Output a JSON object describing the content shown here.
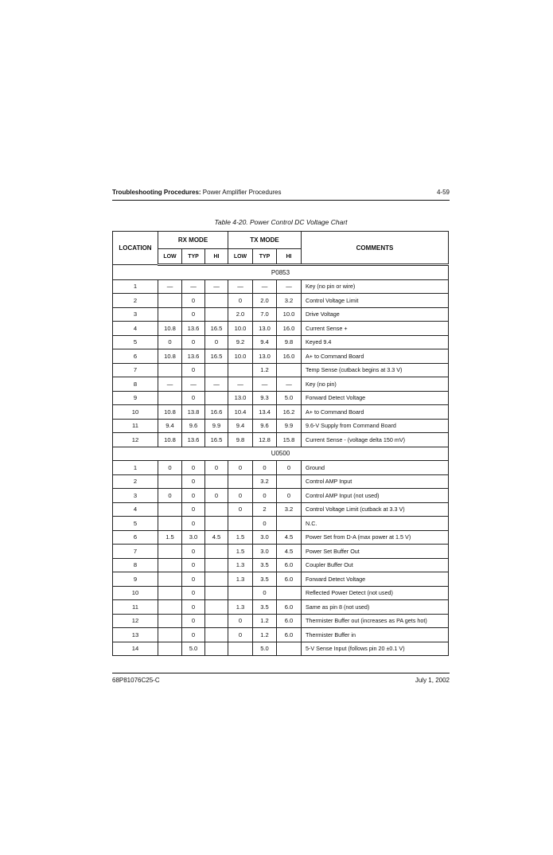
{
  "header": {
    "section_bold": "Troubleshooting Procedures:",
    "section_rest": " Power Amplifier Procedures",
    "page_number": "4-59"
  },
  "caption": "Table 4-20.  Power Control DC Voltage Chart",
  "table": {
    "headers": {
      "location": "LOCATION",
      "rx_mode": "RX MODE",
      "tx_mode": "TX MODE",
      "comments": "COMMENTS",
      "sub": [
        "LOW",
        "TYP",
        "HI",
        "LOW",
        "TYP",
        "HI"
      ]
    },
    "sections": [
      {
        "name": "P0853",
        "rows": [
          [
            "1",
            "—",
            "—",
            "—",
            "—",
            "—",
            "—",
            "Key (no pin or wire)"
          ],
          [
            "2",
            "",
            "0",
            "",
            "0",
            "2.0",
            "3.2",
            "Control Voltage Limit"
          ],
          [
            "3",
            "",
            "0",
            "",
            "2.0",
            "7.0",
            "10.0",
            "Drive Voltage"
          ],
          [
            "4",
            "10.8",
            "13.6",
            "16.5",
            "10.0",
            "13.0",
            "16.0",
            "Current Sense +"
          ],
          [
            "5",
            "0",
            "0",
            "0",
            "9.2",
            "9.4",
            "9.8",
            "Keyed 9.4"
          ],
          [
            "6",
            "10.8",
            "13.6",
            "16.5",
            "10.0",
            "13.0",
            "16.0",
            "A+ to Command Board"
          ],
          [
            "7",
            "",
            "0",
            "",
            "",
            "1.2",
            "",
            "Temp Sense (cutback begins at 3.3 V)"
          ],
          [
            "8",
            "—",
            "—",
            "—",
            "—",
            "—",
            "—",
            "Key (no pin)"
          ],
          [
            "9",
            "",
            "0",
            "",
            "13.0",
            "9.3",
            "5.0",
            "Forward Detect Voltage"
          ],
          [
            "10",
            "10.8",
            "13.8",
            "16.6",
            "10.4",
            "13.4",
            "16.2",
            "A+ to Command Board"
          ],
          [
            "11",
            "9.4",
            "9.6",
            "9.9",
            "9.4",
            "9.6",
            "9.9",
            "9.6-V Supply from Command Board"
          ],
          [
            "12",
            "10.8",
            "13.6",
            "16.5",
            "9.8",
            "12.8",
            "15.8",
            "Current Sense - (voltage delta 150 mV)"
          ]
        ]
      },
      {
        "name": "U0500",
        "rows": [
          [
            "1",
            "0",
            "0",
            "0",
            "0",
            "0",
            "0",
            "Ground"
          ],
          [
            "2",
            "",
            "0",
            "",
            "",
            "3.2",
            "",
            "Control AMP Input"
          ],
          [
            "3",
            "0",
            "0",
            "0",
            "0",
            "0",
            "0",
            "Control AMP Input (not used)"
          ],
          [
            "4",
            "",
            "0",
            "",
            "0",
            "2",
            "3.2",
            "Control Voltage Limit (cutback at 3.3 V)"
          ],
          [
            "5",
            "",
            "0",
            "",
            "",
            "0",
            "",
            "N.C."
          ],
          [
            "6",
            "1.5",
            "3.0",
            "4.5",
            "1.5",
            "3.0",
            "4.5",
            "Power Set from D-A (max power at 1.5 V)"
          ],
          [
            "7",
            "",
            "0",
            "",
            "1.5",
            "3.0",
            "4.5",
            "Power Set Buffer Out"
          ],
          [
            "8",
            "",
            "0",
            "",
            "1.3",
            "3.5",
            "6.0",
            "Coupler Buffer Out"
          ],
          [
            "9",
            "",
            "0",
            "",
            "1.3",
            "3.5",
            "6.0",
            "Forward Detect Voltage"
          ],
          [
            "10",
            "",
            "0",
            "",
            "",
            "0",
            "",
            "Reflected Power Detect (not used)"
          ],
          [
            "11",
            "",
            "0",
            "",
            "1.3",
            "3.5",
            "6.0",
            "Same as pin 8 (not used)"
          ],
          [
            "12",
            "",
            "0",
            "",
            "0",
            "1.2",
            "6.0",
            "Thermister Buffer out (increases as PA gets hot)"
          ],
          [
            "13",
            "",
            "0",
            "",
            "0",
            "1.2",
            "6.0",
            "Thermister Buffer in"
          ],
          [
            "14",
            "",
            "5.0",
            "",
            "",
            "5.0",
            "",
            "5-V Sense Input (follows pin 20 ±0.1 V)"
          ]
        ]
      }
    ]
  },
  "footer": {
    "doc_number": "68P81076C25-C",
    "date": "July 1, 2002"
  }
}
